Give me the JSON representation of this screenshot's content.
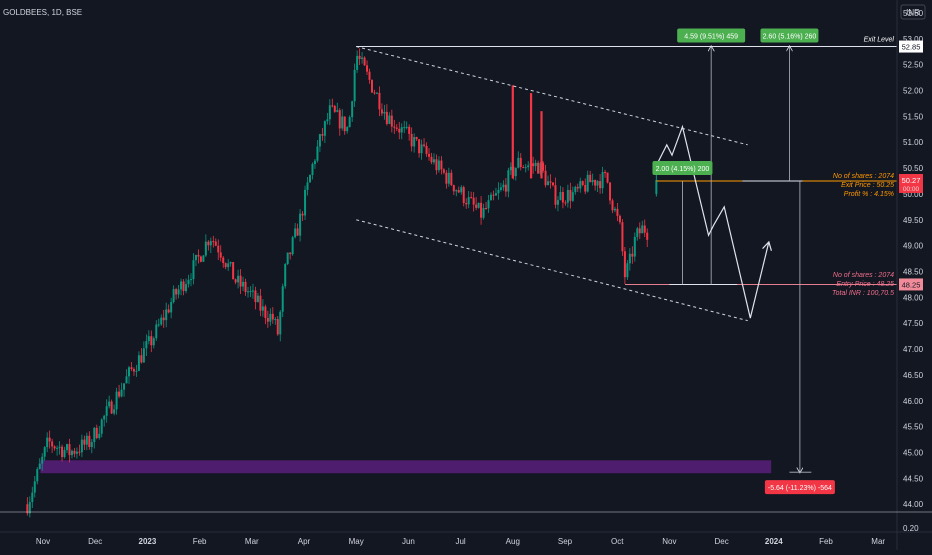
{
  "chart_data": {
    "type": "candlestick",
    "symbol": "GOLDBEES, 1D, BSE",
    "currency": "INR",
    "ylim": [
      43.85,
      53.75
    ],
    "y_ticks": [
      "53.50",
      "53.00",
      "52.50",
      "52.00",
      "51.50",
      "51.00",
      "50.50",
      "50.00",
      "49.50",
      "49.00",
      "48.50",
      "48.00",
      "47.50",
      "47.00",
      "46.50",
      "46.00",
      "45.50",
      "45.00",
      "44.50",
      "44.00"
    ],
    "x_ticks": [
      "Nov",
      "Dec",
      "2023",
      "Feb",
      "Mar",
      "Apr",
      "May",
      "Jun",
      "Jul",
      "Aug",
      "Sep",
      "Oct",
      "Nov",
      "Dec",
      "2024",
      "Feb",
      "Mar"
    ],
    "x_tick_months": [
      0,
      1,
      2,
      3,
      4,
      5,
      6,
      7,
      8,
      9,
      10,
      11,
      12,
      13,
      14,
      15,
      16
    ],
    "volume_axis_label": "0.20",
    "current_price_label": "50.27",
    "current_price_sub": "00:00",
    "price_labels": [
      {
        "text": "52.85",
        "value": 52.85,
        "style": "white"
      },
      {
        "text": "48.25",
        "value": 48.25,
        "style": "pink"
      }
    ],
    "annotations": {
      "exit_level": "Exit Level",
      "exit_block": [
        "No of shares : 2074",
        "Exit Price     : 50.25",
        "Profit %         : 4.15%"
      ],
      "entry_block": [
        "No of shares : 2074",
        "Entry Price   : 48.25",
        "Total INR    : 100,70.5"
      ]
    },
    "measure_boxes": [
      {
        "text": "4.59 (9.51%) 459",
        "color": "#4caf50"
      },
      {
        "text": "2.60 (5.16%) 260",
        "color": "#4caf50"
      },
      {
        "text": "2.00 (4.15%) 200",
        "color": "#4caf50"
      },
      {
        "text": "-5.64 (-11.23%) -564",
        "color": "#f23645"
      }
    ],
    "levels": {
      "exit_level": 52.85,
      "exit_price": 50.25,
      "entry_price": 48.25,
      "zone_top": 44.85,
      "zone_bottom": 44.6
    },
    "channel": {
      "upper": [
        {
          "t": 6.0,
          "p": 52.85
        },
        {
          "t": 13.5,
          "p": 50.95
        }
      ],
      "lower": [
        {
          "t": 6.0,
          "p": 49.5
        },
        {
          "t": 13.5,
          "p": 47.55
        }
      ]
    },
    "projection_path": [
      {
        "t": 11.75,
        "p": 50.55
      },
      {
        "t": 11.95,
        "p": 50.95
      },
      {
        "t": 12.05,
        "p": 50.75
      },
      {
        "t": 12.25,
        "p": 51.3
      },
      {
        "t": 12.75,
        "p": 49.2
      },
      {
        "t": 12.85,
        "p": 49.4
      },
      {
        "t": 13.05,
        "p": 49.75
      },
      {
        "t": 13.55,
        "p": 47.6
      },
      {
        "t": 13.9,
        "p": 49.05
      }
    ],
    "anchors": [
      {
        "t": -0.3,
        "p": 44.0
      },
      {
        "t": 0.1,
        "p": 45.2
      },
      {
        "t": 0.5,
        "p": 45.0
      },
      {
        "t": 0.9,
        "p": 45.2
      },
      {
        "t": 1.3,
        "p": 45.9
      },
      {
        "t": 1.7,
        "p": 46.6
      },
      {
        "t": 2.1,
        "p": 47.2
      },
      {
        "t": 2.5,
        "p": 48.0
      },
      {
        "t": 2.9,
        "p": 48.6
      },
      {
        "t": 3.2,
        "p": 49.2
      },
      {
        "t": 3.4,
        "p": 48.9
      },
      {
        "t": 3.7,
        "p": 48.3
      },
      {
        "t": 3.95,
        "p": 48.1
      },
      {
        "t": 4.2,
        "p": 47.75
      },
      {
        "t": 4.4,
        "p": 47.6
      },
      {
        "t": 4.5,
        "p": 47.3
      },
      {
        "t": 4.65,
        "p": 48.6
      },
      {
        "t": 4.9,
        "p": 49.4
      },
      {
        "t": 5.2,
        "p": 50.7
      },
      {
        "t": 5.5,
        "p": 51.6
      },
      {
        "t": 5.85,
        "p": 51.25
      },
      {
        "t": 6.0,
        "p": 52.7
      },
      {
        "t": 6.3,
        "p": 52.1
      },
      {
        "t": 6.6,
        "p": 51.5
      },
      {
        "t": 7.0,
        "p": 51.1
      },
      {
        "t": 7.4,
        "p": 50.7
      },
      {
        "t": 7.8,
        "p": 50.25
      },
      {
        "t": 8.2,
        "p": 49.8
      },
      {
        "t": 8.4,
        "p": 49.6
      },
      {
        "t": 8.8,
        "p": 50.1
      },
      {
        "t": 9.1,
        "p": 50.6
      },
      {
        "t": 9.3,
        "p": 50.55
      },
      {
        "t": 9.5,
        "p": 50.55
      },
      {
        "t": 9.8,
        "p": 49.95
      },
      {
        "t": 10.2,
        "p": 50.0
      },
      {
        "t": 10.5,
        "p": 50.25
      },
      {
        "t": 10.8,
        "p": 50.3
      },
      {
        "t": 10.9,
        "p": 49.85
      },
      {
        "t": 11.05,
        "p": 49.35
      },
      {
        "t": 11.15,
        "p": 48.4
      },
      {
        "t": 11.25,
        "p": 48.7
      },
      {
        "t": 11.35,
        "p": 49.15
      },
      {
        "t": 11.5,
        "p": 49.35
      },
      {
        "t": 11.6,
        "p": 49.25
      }
    ],
    "spikes": [
      {
        "t": 9.0,
        "p": 52.1
      },
      {
        "t": 9.35,
        "p": 51.95
      },
      {
        "t": 9.55,
        "p": 51.6
      }
    ],
    "last_candle": {
      "t": 11.75,
      "o": 50.0,
      "h": 50.55,
      "l": 49.95,
      "c": 50.27
    },
    "colors": {
      "up": "#089981",
      "down": "#f23645",
      "bg": "#131722",
      "text": "#d1d4dc",
      "grid": "#1e222d",
      "zone": "#5b1f7a",
      "exit_line": "#ff9800",
      "entry_line": "#e57f8f",
      "exit_text": "#ff9800",
      "entry_text": "#f06e8a",
      "price_tag": "#f23645",
      "entry_tag": "#f28b99"
    }
  }
}
